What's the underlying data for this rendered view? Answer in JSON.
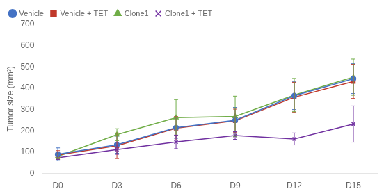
{
  "chart_data": {
    "type": "line",
    "ylabel": "Tumor size (mm³)",
    "x": [
      0,
      3,
      6,
      9,
      12,
      15
    ],
    "xlim": [
      -0.8,
      16.2
    ],
    "xticks": [
      {
        "value": 0,
        "label": "D0"
      },
      {
        "value": 3,
        "label": "D3"
      },
      {
        "value": 6,
        "label": "D6"
      },
      {
        "value": 9,
        "label": "D9"
      },
      {
        "value": 12,
        "label": "D12"
      },
      {
        "value": 15,
        "label": "D15"
      }
    ],
    "ylim": [
      0,
      700
    ],
    "yticks": [
      0,
      100,
      200,
      300,
      400,
      500,
      600,
      700
    ],
    "grid": false,
    "legend": "upper left",
    "series": [
      {
        "name": "Vehicle",
        "color": "#4472C4",
        "marker": "circle",
        "values": [
          90,
          135,
          215,
          250,
          365,
          445
        ],
        "errors": [
          30,
          40,
          50,
          60,
          65,
          70
        ]
      },
      {
        "name": "Vehicle + TET",
        "color": "#C0392B",
        "marker": "square",
        "values": [
          87,
          130,
          212,
          247,
          358,
          432
        ],
        "errors": [
          20,
          60,
          55,
          55,
          70,
          80
        ]
      },
      {
        "name": "Clone1",
        "color": "#70AD47",
        "marker": "triangle",
        "values": [
          80,
          182,
          262,
          268,
          368,
          452
        ],
        "errors": [
          12,
          28,
          85,
          95,
          78,
          85
        ]
      },
      {
        "name": "Clone1 + TET",
        "color": "#7030A0",
        "marker": "cross",
        "values": [
          74,
          112,
          148,
          178,
          162,
          232
        ],
        "errors": [
          8,
          22,
          32,
          18,
          28,
          85
        ]
      }
    ]
  }
}
